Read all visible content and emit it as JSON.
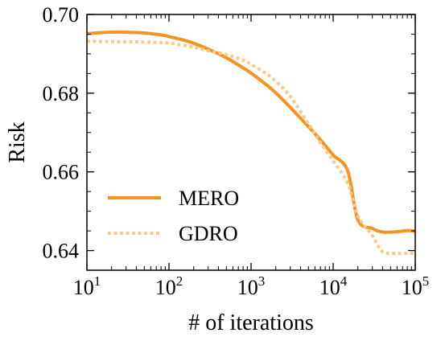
{
  "chart_data": {
    "type": "line",
    "title": "",
    "xlabel": "# of iterations",
    "ylabel": "Risk",
    "xscale": "log",
    "xlim": [
      10,
      100000
    ],
    "ylim": [
      0.635,
      0.7
    ],
    "grid": false,
    "legend_position": "lower-left",
    "xticks": [
      {
        "value": 10,
        "base": "10",
        "exp": "1"
      },
      {
        "value": 100,
        "base": "10",
        "exp": "2"
      },
      {
        "value": 1000,
        "base": "10",
        "exp": "3"
      },
      {
        "value": 10000,
        "base": "10",
        "exp": "4"
      },
      {
        "value": 100000,
        "base": "10",
        "exp": "5"
      }
    ],
    "yticks": [
      {
        "value": 0.64,
        "label": "0.64"
      },
      {
        "value": 0.66,
        "label": "0.66"
      },
      {
        "value": 0.68,
        "label": "0.68"
      },
      {
        "value": 0.7,
        "label": "0.70"
      }
    ],
    "series": [
      {
        "name": "MERO",
        "color": "#f7931e",
        "style": "solid",
        "x": [
          10,
          15,
          20,
          30,
          50,
          80,
          100,
          150,
          200,
          300,
          500,
          800,
          1000,
          1500,
          2000,
          3000,
          5000,
          7000,
          10000,
          15000,
          20000,
          30000,
          40000,
          60000,
          80000,
          100000
        ],
        "y": [
          0.6951,
          0.6954,
          0.6955,
          0.6955,
          0.6953,
          0.6948,
          0.6944,
          0.6935,
          0.6927,
          0.6912,
          0.689,
          0.6864,
          0.6851,
          0.6823,
          0.6801,
          0.6764,
          0.6715,
          0.6681,
          0.6643,
          0.6603,
          0.6478,
          0.6456,
          0.6447,
          0.6448,
          0.6451,
          0.6449
        ]
      },
      {
        "name": "GDRO",
        "color": "#fbc98a",
        "style": "dotted",
        "x": [
          10,
          20,
          50,
          100,
          200,
          300,
          500,
          800,
          1000,
          1500,
          2000,
          3000,
          5000,
          7000,
          10000,
          15000,
          20000,
          30000,
          40000,
          60000,
          80000,
          100000
        ],
        "y": [
          0.6932,
          0.6931,
          0.693,
          0.6927,
          0.6917,
          0.6908,
          0.6898,
          0.6884,
          0.6873,
          0.6851,
          0.683,
          0.6792,
          0.6722,
          0.6674,
          0.6628,
          0.6572,
          0.6488,
          0.6438,
          0.6397,
          0.6393,
          0.6393,
          0.6393
        ]
      }
    ]
  }
}
